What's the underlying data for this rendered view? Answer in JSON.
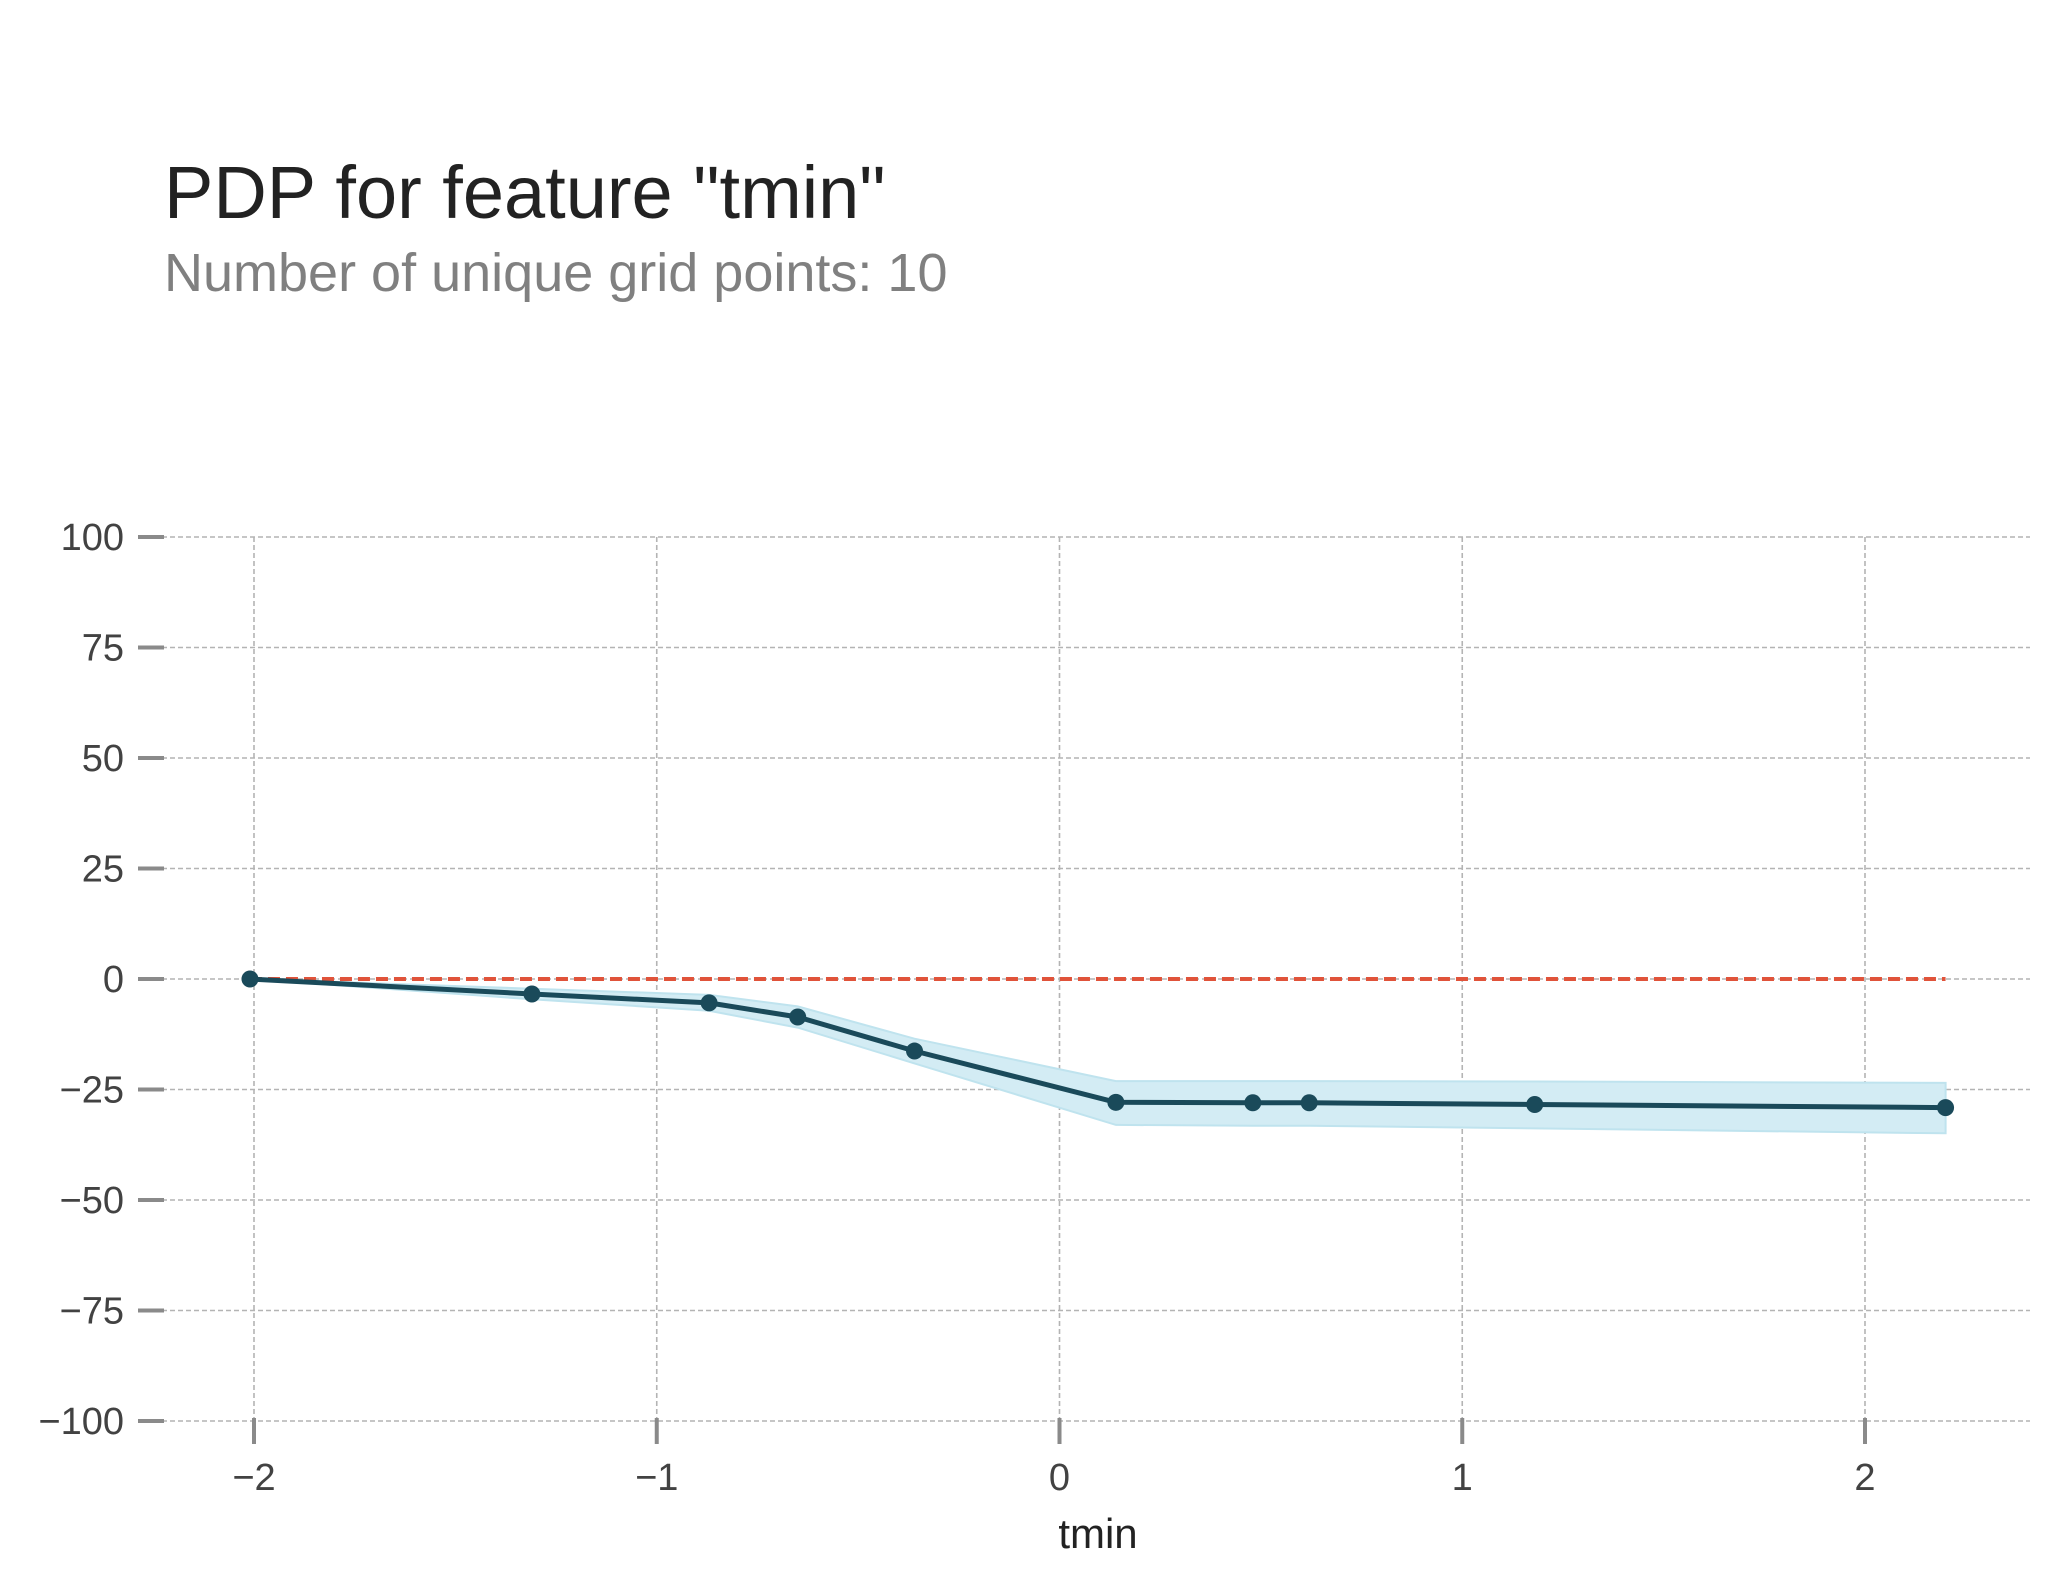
{
  "title": "PDP for feature \"tmin\"",
  "subtitle": "Number of unique grid points: 10",
  "chart_data": {
    "type": "line",
    "title": "PDP for feature \"tmin\"",
    "subtitle": "Number of unique grid points: 10",
    "xlabel": "tmin",
    "ylabel": "",
    "xlim": [
      -2.22,
      2.4
    ],
    "ylim": [
      -100,
      100
    ],
    "xticks": [
      -2,
      -1,
      0,
      1,
      2
    ],
    "yticks": [
      100,
      75,
      50,
      25,
      0,
      -25,
      -50,
      -75,
      -100
    ],
    "xtick_labels": [
      "−2",
      "−1",
      "0",
      "1",
      "2"
    ],
    "ytick_labels": [
      "100",
      "75",
      "50",
      "25",
      "0",
      "−25",
      "−50",
      "−75",
      "−100"
    ],
    "grid": true,
    "series": [
      {
        "x": [
          -2.01,
          -1.31,
          -0.87,
          -0.65,
          -0.36,
          0.14,
          0.48,
          0.62,
          1.18,
          2.2
        ],
        "y": [
          0,
          -3.4,
          -5.4,
          -8.6,
          -16.3,
          -27.9,
          -28.0,
          -28.0,
          -28.4,
          -29.1
        ],
        "upper": [
          0,
          -2.2,
          -3.6,
          -6.2,
          -13.5,
          -23.1,
          -23.1,
          -23.1,
          -23.2,
          -23.5
        ],
        "lower": [
          0,
          -4.6,
          -7.2,
          -11.0,
          -19.1,
          -33.0,
          -33.2,
          -33.2,
          -33.8,
          -34.9
        ],
        "color": "#1a4a5a",
        "band_color": "#d3ecf4"
      }
    ],
    "baseline": {
      "y": 0,
      "color": "#e0533a",
      "style": "dashed"
    }
  }
}
